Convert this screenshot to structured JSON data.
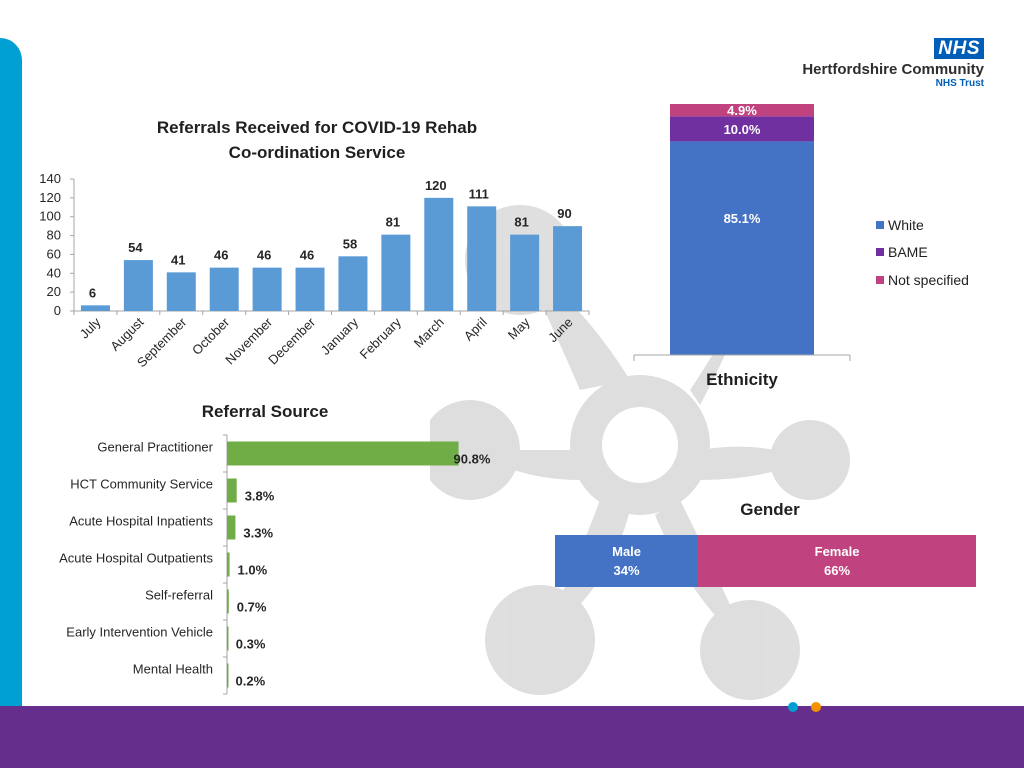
{
  "colors": {
    "bar_blue": "#5b9bd5",
    "green": "#70ad47",
    "white_seg": "#4472c4",
    "bame_seg": "#7030a0",
    "notspec_seg": "#c0427e",
    "male": "#4472c4",
    "female": "#c0427e",
    "brand_cyan": "#00a0d2",
    "brand_purple": "#652d8c",
    "nhs_blue": "#005eb8"
  },
  "logo": {
    "badge": "NHS",
    "org": "Hertfordshire Community",
    "sub": "NHS Trust"
  },
  "chart_data": [
    {
      "id": "referrals",
      "type": "bar",
      "title": [
        "Referrals Received for COVID-19 Rehab",
        "Co-ordination Service"
      ],
      "categories": [
        "July",
        "August",
        "September",
        "October",
        "November",
        "December",
        "January",
        "February",
        "March",
        "April",
        "May",
        "June"
      ],
      "values": [
        6,
        54,
        41,
        46,
        46,
        46,
        58,
        81,
        120,
        111,
        81,
        90
      ],
      "yticks": [
        0,
        20,
        40,
        60,
        80,
        100,
        120,
        140
      ],
      "ylim": [
        0,
        140
      ],
      "xlabel": "",
      "ylabel": ""
    },
    {
      "id": "ethnicity",
      "type": "bar",
      "stacked": true,
      "title": "Ethnicity",
      "series": [
        {
          "name": "White",
          "value": 85.1,
          "label": "85.1%"
        },
        {
          "name": "BAME",
          "value": 10.0,
          "label": "10.0%"
        },
        {
          "name": "Not specified",
          "value": 4.9,
          "label": "4.9%"
        }
      ],
      "ylim": [
        0,
        100
      ],
      "legend_position": "right"
    },
    {
      "id": "referral_source",
      "type": "bar",
      "orientation": "horizontal",
      "title": "Referral Source",
      "categories": [
        "General Practitioner",
        "HCT Community Service",
        "Acute Hospital Inpatients",
        "Acute Hospital Outpatients",
        "Self-referral",
        "Early Intervention Vehicle",
        "Mental Health"
      ],
      "values": [
        90.8,
        3.8,
        3.3,
        1.0,
        0.7,
        0.3,
        0.2
      ],
      "labels": [
        "90.8%",
        "3.8%",
        "3.3%",
        "1.0%",
        "0.7%",
        "0.3%",
        "0.2%"
      ],
      "xlim": [
        0,
        100
      ]
    },
    {
      "id": "gender",
      "type": "bar",
      "orientation": "horizontal",
      "stacked": true,
      "title": "Gender",
      "series": [
        {
          "name": "Male",
          "value": 34,
          "label": "34%"
        },
        {
          "name": "Female",
          "value": 66,
          "label": "66%"
        }
      ]
    }
  ]
}
